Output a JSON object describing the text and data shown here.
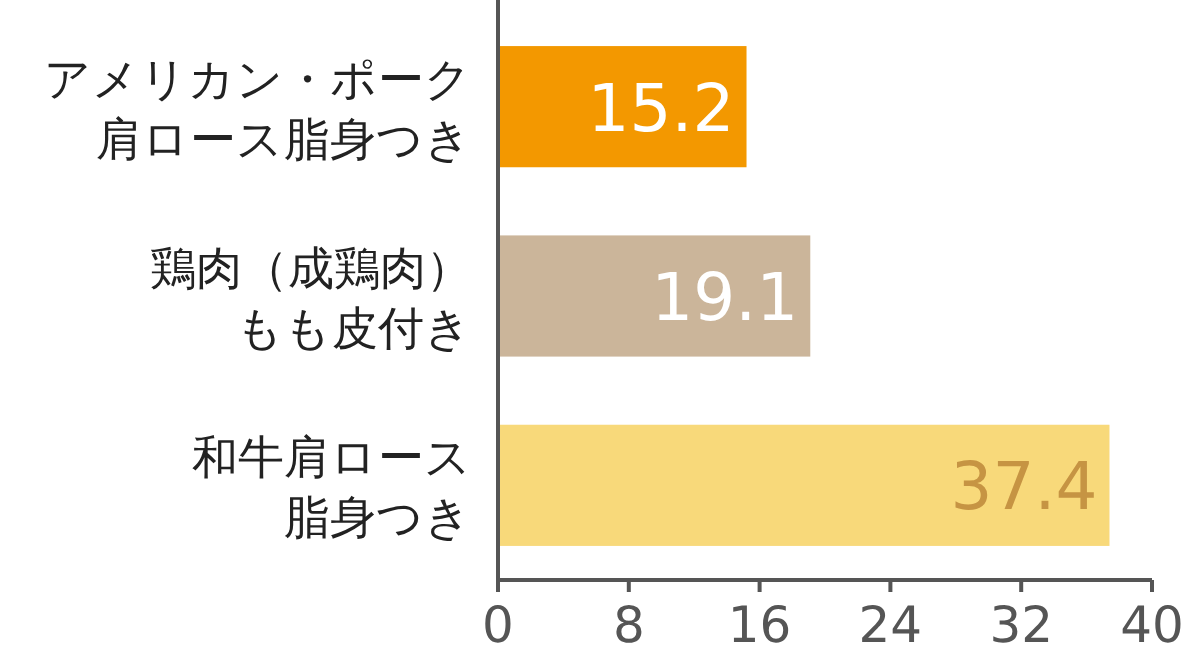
{
  "chart_data": {
    "type": "bar",
    "orientation": "horizontal",
    "categories": [
      "アメリカン・ポーク肩ロース脂身つき",
      "鶏肉（成鶏肉）もも皮付き",
      "和牛肩ロース脂身つき"
    ],
    "values": [
      15.2,
      19.1,
      37.4
    ],
    "colors": [
      "#f39800",
      "#cbb59a",
      "#f8d97a"
    ],
    "xlim": [
      0,
      40
    ],
    "xticks": [
      0,
      8,
      16,
      24,
      32,
      40
    ],
    "data_labels": true
  }
}
